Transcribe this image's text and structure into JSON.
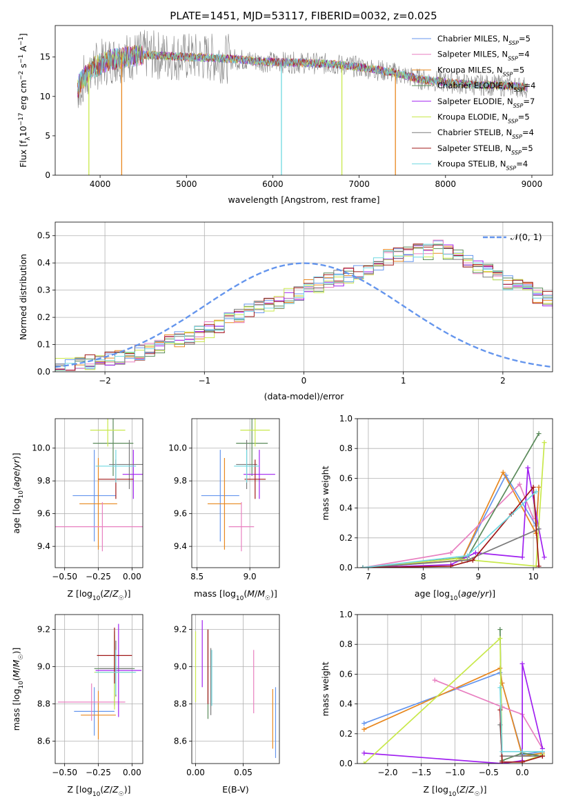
{
  "figure": {
    "title": "PLATE=1451, MJD=53117, FIBERID=0032, z=0.025",
    "colors": [
      "#6495ED",
      "#E8871E",
      "#E87FC0",
      "#5A8A5A",
      "#A020F0",
      "#C8E84A",
      "#7A7A7A",
      "#A01818",
      "#6FD8E0"
    ]
  },
  "chart_data": [
    {
      "id": "spectrum",
      "type": "line",
      "title": "PLATE=1451, MJD=53117, FIBERID=0032, z=0.025",
      "xlabel": "wavelength [Angstrom, rest frame]",
      "ylabel": "Flux [f_λ10^-17 erg cm^-2 s^-1 A^-1]",
      "xlim": [
        3480,
        9240
      ],
      "ylim": [
        0,
        19
      ],
      "xticks": [
        4000,
        5000,
        6000,
        7000,
        8000,
        9000
      ],
      "yticks": [
        0,
        5,
        10,
        15
      ],
      "legend_position": "top-right",
      "series": [
        {
          "name": "Chabrier MILES, N_SSP=5",
          "legend_main": "Chabrier MILES, N",
          "legend_sub": "SSP",
          "legend_tail": "=5",
          "color": "#6495ED"
        },
        {
          "name": "Salpeter MILES, N_SSP=4",
          "legend_main": "Salpeter MILES, N",
          "legend_sub": "SSP",
          "legend_tail": "=4",
          "color": "#E87FC0"
        },
        {
          "name": "Kroupa MILES, N_SSP=5",
          "legend_main": "Kroupa MILES, N",
          "legend_sub": "SSP",
          "legend_tail": "=5",
          "color": "#E8871E"
        },
        {
          "name": "Chabrier ELODIE, N_SSP=4",
          "legend_main": "Chabrier ELODIE, N",
          "legend_sub": "SSP",
          "legend_tail": "=4",
          "color": "#5A8A5A"
        },
        {
          "name": "Salpeter ELODIE, N_SSP=7",
          "legend_main": "Salpeter ELODIE, N",
          "legend_sub": "SSP",
          "legend_tail": "=7",
          "color": "#A020F0"
        },
        {
          "name": "Kroupa ELODIE, N_SSP=5",
          "legend_main": "Kroupa ELODIE, N",
          "legend_sub": "SSP",
          "legend_tail": "=5",
          "color": "#C8E84A"
        },
        {
          "name": "Chabrier STELIB, N_SSP=4",
          "legend_main": "Chabrier STELIB, N",
          "legend_sub": "SSP",
          "legend_tail": "=4",
          "color": "#7A7A7A"
        },
        {
          "name": "Salpeter STELIB, N_SSP=5",
          "legend_main": "Salpeter STELIB, N",
          "legend_sub": "SSP",
          "legend_tail": "=5",
          "color": "#A01818"
        },
        {
          "name": "Kroupa STELIB, N_SSP=4",
          "legend_main": "Kroupa STELIB, N",
          "legend_sub": "SSP",
          "legend_tail": "=4",
          "color": "#6FD8E0"
        }
      ],
      "continuum": {
        "wavelength": [
          3750,
          3900,
          4100,
          4300,
          4500,
          4700,
          5000,
          5300,
          5600,
          5900,
          6200,
          6500,
          6800,
          7100,
          7400,
          7700,
          8000,
          8300,
          8600,
          8900,
          9200
        ],
        "flux": [
          11.5,
          13.5,
          14.6,
          15.0,
          15.3,
          15.2,
          15.0,
          14.9,
          14.7,
          14.4,
          14.3,
          14.2,
          14.0,
          13.6,
          13.0,
          12.2,
          11.8,
          11.5,
          11.4,
          11.2,
          11.0
        ]
      },
      "dips": [
        {
          "wavelength": 3870,
          "flux": 0.0,
          "color": "#C8E84A"
        },
        {
          "wavelength": 4250,
          "flux": 0.0,
          "color": "#E8871E"
        },
        {
          "wavelength": 6100,
          "flux": 0.0,
          "color": "#6FD8E0"
        },
        {
          "wavelength": 6800,
          "flux": 0.0,
          "color": "#C8E84A"
        },
        {
          "wavelength": 7420,
          "flux": 0.0,
          "color": "#E8871E"
        }
      ]
    },
    {
      "id": "residuals",
      "type": "area",
      "xlabel": "(data-model)/error",
      "ylabel": "Normed distribution",
      "xlim": [
        -2.5,
        2.5
      ],
      "ylim": [
        0,
        0.55
      ],
      "xticks": [
        -2,
        -1,
        0,
        1,
        2
      ],
      "xtick_labels": [
        "−2",
        "−1",
        "0",
        "1",
        "2"
      ],
      "yticks": [
        0.0,
        0.1,
        0.2,
        0.3,
        0.4,
        0.5
      ],
      "grid": true,
      "legend_position": "top-right",
      "legend_label": "𝒩(0, 1)",
      "bin_width": 0.1,
      "bin_start": -2.5,
      "base_hist": [
        0.02,
        0.02,
        0.025,
        0.035,
        0.045,
        0.05,
        0.055,
        0.06,
        0.07,
        0.08,
        0.095,
        0.11,
        0.12,
        0.13,
        0.14,
        0.155,
        0.17,
        0.19,
        0.21,
        0.23,
        0.24,
        0.245,
        0.26,
        0.28,
        0.29,
        0.31,
        0.32,
        0.335,
        0.345,
        0.355,
        0.37,
        0.385,
        0.4,
        0.42,
        0.43,
        0.43,
        0.44,
        0.44,
        0.46,
        0.44,
        0.42,
        0.41,
        0.38,
        0.37,
        0.35,
        0.33,
        0.32,
        0.3,
        0.28,
        0.27,
        0.25,
        0.235,
        0.22,
        0.2,
        0.18,
        0.17,
        0.16,
        0.15,
        0.14,
        0.13,
        0.12,
        0.105,
        0.09,
        0.08,
        0.07,
        0.065,
        0.06,
        0.055,
        0.05,
        0.045,
        0.04,
        0.035,
        0.03,
        0.03,
        0.03,
        0.025,
        0.025,
        0.03,
        0.025,
        0.025,
        0.02,
        0.02,
        0.025,
        0.025,
        0.03,
        0.02,
        0.02,
        0.02,
        0.02,
        0.02,
        0.02,
        0.02,
        0.02,
        0.02,
        0.02,
        0.02,
        0.02,
        0.02,
        0.02,
        0.02
      ]
    },
    {
      "id": "age_vs_Z",
      "type": "scatter",
      "xlabel": "Z [log10(Z/Z☉)]",
      "ylabel": "age [log10(age/yr)]",
      "xlim": [
        -0.57,
        0.08
      ],
      "ylim": [
        9.27,
        10.18
      ],
      "xticks": [
        -0.5,
        -0.25,
        0.0
      ],
      "xtick_labels": [
        "−0.50",
        "−0.25",
        "0.00"
      ],
      "yticks": [
        9.4,
        9.6,
        9.8,
        10.0
      ],
      "yticks_labels": [
        "9.4",
        "9.6",
        "9.8",
        "10.0"
      ],
      "grid": true,
      "points": [
        {
          "color": "#6495ED",
          "x": -0.28,
          "xerr": 0.16,
          "y": 9.71,
          "yerr": 0.28
        },
        {
          "color": "#E8871E",
          "x": -0.25,
          "xerr": 0.14,
          "y": 9.66,
          "yerr": 0.28
        },
        {
          "color": "#E87FC0",
          "x": -0.22,
          "xerr": 0.35,
          "y": 9.52,
          "yerr": 0.15
        },
        {
          "color": "#5A8A5A",
          "x": -0.14,
          "xerr": 0.15,
          "y": 10.03,
          "yerr": 0.2
        },
        {
          "color": "#A020F0",
          "x": 0.01,
          "xerr": 0.08,
          "y": 9.84,
          "yerr": 0.15
        },
        {
          "color": "#C8E84A",
          "x": -0.18,
          "xerr": 0.13,
          "y": 10.11,
          "yerr": 0.1
        },
        {
          "color": "#7A7A7A",
          "x": -0.02,
          "xerr": 0.15,
          "y": 9.9,
          "yerr": 0.15
        },
        {
          "color": "#A01818",
          "x": -0.12,
          "xerr": 0.13,
          "y": 9.81,
          "yerr": 0.12
        },
        {
          "color": "#6FD8E0",
          "x": -0.12,
          "xerr": 0.15,
          "y": 9.89,
          "yerr": 0.1
        }
      ]
    },
    {
      "id": "age_vs_mass",
      "type": "scatter",
      "xlabel": "mass [log10(M/M☉)]",
      "ylabel": "",
      "xlim": [
        8.45,
        9.28
      ],
      "ylim": [
        9.27,
        10.18
      ],
      "xticks": [
        8.5,
        9.0
      ],
      "xtick_labels": [
        "8.5",
        "9.0"
      ],
      "yticks": [
        9.4,
        9.6,
        9.8,
        10.0
      ],
      "yticks_labels": [
        "9.4",
        "9.6",
        "9.8",
        "10.0"
      ],
      "grid": true,
      "points": [
        {
          "color": "#6495ED",
          "x": 8.72,
          "xerr": 0.18,
          "y": 9.71,
          "yerr": 0.28
        },
        {
          "color": "#E8871E",
          "x": 8.76,
          "xerr": 0.16,
          "y": 9.66,
          "yerr": 0.28
        },
        {
          "color": "#E87FC0",
          "x": 8.92,
          "xerr": 0.12,
          "y": 9.52,
          "yerr": 0.15
        },
        {
          "color": "#5A8A5A",
          "x": 9.02,
          "xerr": 0.15,
          "y": 10.03,
          "yerr": 0.2
        },
        {
          "color": "#A020F0",
          "x": 9.09,
          "xerr": 0.15,
          "y": 9.84,
          "yerr": 0.15
        },
        {
          "color": "#C8E84A",
          "x": 9.05,
          "xerr": 0.14,
          "y": 10.11,
          "yerr": 0.1
        },
        {
          "color": "#7A7A7A",
          "x": 8.97,
          "xerr": 0.1,
          "y": 9.9,
          "yerr": 0.15
        },
        {
          "color": "#A01818",
          "x": 9.05,
          "xerr": 0.1,
          "y": 9.81,
          "yerr": 0.12
        },
        {
          "color": "#6FD8E0",
          "x": 8.97,
          "xerr": 0.12,
          "y": 9.89,
          "yerr": 0.1
        }
      ]
    },
    {
      "id": "weight_vs_age",
      "type": "line",
      "xlabel": "age [log10(age/yr)]",
      "ylabel": "mass weight",
      "xlim": [
        6.8,
        10.35
      ],
      "ylim": [
        0.0,
        1.0
      ],
      "xticks": [
        7,
        8,
        9,
        10
      ],
      "yticks": [
        0.0,
        0.2,
        0.4,
        0.6,
        0.8,
        1.0
      ],
      "grid": true,
      "series": [
        {
          "color": "#6495ED",
          "x": [
            6.9,
            8.7,
            9.5,
            10.05,
            10.1
          ],
          "y": [
            0.0,
            0.05,
            0.62,
            0.28,
            0.54
          ]
        },
        {
          "color": "#E8871E",
          "x": [
            6.9,
            8.7,
            9.45,
            10.05,
            10.1
          ],
          "y": [
            0.0,
            0.05,
            0.64,
            0.23,
            0.54
          ]
        },
        {
          "color": "#E87FC0",
          "x": [
            6.9,
            8.5,
            9.75,
            10.0
          ],
          "y": [
            0.0,
            0.1,
            0.56,
            0.33
          ]
        },
        {
          "color": "#5A8A5A",
          "x": [
            6.9,
            8.8,
            10.1
          ],
          "y": [
            0.0,
            0.07,
            0.9
          ]
        },
        {
          "color": "#A020F0",
          "x": [
            6.9,
            8.5,
            8.95,
            9.8,
            9.9,
            10.1,
            10.2
          ],
          "y": [
            0.0,
            0.02,
            0.1,
            0.07,
            0.67,
            0.26,
            0.07
          ]
        },
        {
          "color": "#C8E84A",
          "x": [
            6.9,
            8.6,
            10.05,
            10.2
          ],
          "y": [
            0.0,
            0.06,
            0.01,
            0.84
          ]
        },
        {
          "color": "#7A7A7A",
          "x": [
            6.9,
            8.8,
            10.1
          ],
          "y": [
            0.0,
            0.05,
            0.26
          ]
        },
        {
          "color": "#A01818",
          "x": [
            6.9,
            8.5,
            8.9,
            9.6,
            10.0,
            10.1
          ],
          "y": [
            0.0,
            0.01,
            0.05,
            0.36,
            0.54,
            0.01
          ]
        },
        {
          "color": "#6FD8E0",
          "x": [
            6.9,
            8.8,
            10.05
          ],
          "y": [
            0.0,
            0.08,
            0.51
          ]
        }
      ]
    },
    {
      "id": "mass_vs_Z",
      "type": "scatter",
      "xlabel": "Z [log10(Z/Z☉)]",
      "ylabel": "mass [log10(M/M☉)]",
      "xlim": [
        -0.57,
        0.08
      ],
      "ylim": [
        8.48,
        9.28
      ],
      "xticks": [
        -0.5,
        -0.25,
        0.0
      ],
      "xtick_labels": [
        "−0.50",
        "−0.25",
        "0.00"
      ],
      "yticks": [
        8.6,
        8.8,
        9.0,
        9.2
      ],
      "yticks_labels": [
        "8.6",
        "8.8",
        "9.0",
        "9.2"
      ],
      "grid": true,
      "points": [
        {
          "color": "#6495ED",
          "x": -0.28,
          "xerr": 0.15,
          "y": 8.76,
          "yerr": 0.13
        },
        {
          "color": "#E8871E",
          "x": -0.25,
          "xerr": 0.13,
          "y": 8.74,
          "yerr": 0.13
        },
        {
          "color": "#E87FC0",
          "x": -0.3,
          "xerr": 0.25,
          "y": 8.81,
          "yerr": 0.1
        },
        {
          "color": "#5A8A5A",
          "x": -0.13,
          "xerr": 0.15,
          "y": 8.99,
          "yerr": 0.2
        },
        {
          "color": "#A020F0",
          "x": -0.1,
          "xerr": 0.17,
          "y": 8.98,
          "yerr": 0.25
        },
        {
          "color": "#C8E84A",
          "x": -0.13,
          "xerr": 0.15,
          "y": 8.97,
          "yerr": 0.2
        },
        {
          "color": "#7A7A7A",
          "x": -0.12,
          "xerr": 0.12,
          "y": 8.99,
          "yerr": 0.15
        },
        {
          "color": "#A01818",
          "x": -0.13,
          "xerr": 0.13,
          "y": 9.06,
          "yerr": 0.15
        },
        {
          "color": "#6FD8E0",
          "x": -0.12,
          "xerr": 0.15,
          "y": 8.97,
          "yerr": 0.12
        }
      ]
    },
    {
      "id": "mass_vs_ebv",
      "type": "scatter",
      "xlabel": "E(B-V)",
      "ylabel": "",
      "xlim": [
        -0.004,
        0.088
      ],
      "ylim": [
        8.48,
        9.28
      ],
      "xticks": [
        0.0,
        0.05
      ],
      "xtick_labels": [
        "0.00",
        "0.05"
      ],
      "yticks": [
        8.6,
        8.8,
        9.0,
        9.2
      ],
      "yticks_labels": [
        "8.6",
        "8.8",
        "9.0",
        "9.2"
      ],
      "grid": true,
      "points": [
        {
          "color": "#6495ED",
          "x": 0.084,
          "xerr": 0.0,
          "y": 8.7,
          "yerr": 0.19
        },
        {
          "color": "#E8871E",
          "x": 0.081,
          "xerr": 0.0,
          "y": 8.72,
          "yerr": 0.16
        },
        {
          "color": "#E87FC0",
          "x": 0.061,
          "xerr": 0.0,
          "y": 8.92,
          "yerr": 0.17
        },
        {
          "color": "#5A8A5A",
          "x": 0.013,
          "xerr": 0.0,
          "y": 8.96,
          "yerr": 0.24
        },
        {
          "color": "#A020F0",
          "x": 0.007,
          "xerr": 0.0,
          "y": 9.07,
          "yerr": 0.18
        },
        {
          "color": "#C8E84A",
          "x": 0.0,
          "xerr": 0.0,
          "y": 9.0,
          "yerr": 0.19
        },
        {
          "color": "#7A7A7A",
          "x": 0.016,
          "xerr": 0.0,
          "y": 8.92,
          "yerr": 0.18
        },
        {
          "color": "#A01818",
          "x": 0.013,
          "xerr": 0.0,
          "y": 9.0,
          "yerr": 0.2
        },
        {
          "color": "#6FD8E0",
          "x": 0.017,
          "xerr": 0.0,
          "y": 8.94,
          "yerr": 0.15
        }
      ]
    },
    {
      "id": "weight_vs_Z",
      "type": "line",
      "xlabel": "Z [log10(Z/Z☉)]",
      "ylabel": "mass weight",
      "xlim": [
        -2.45,
        0.45
      ],
      "ylim": [
        0.0,
        1.0
      ],
      "xticks": [
        -2.0,
        -1.5,
        -1.0,
        -0.5,
        0.0
      ],
      "xtick_labels": [
        "−2.0",
        "−1.5",
        "−1.0",
        "−0.5",
        "0.0"
      ],
      "yticks": [
        0.0,
        0.2,
        0.4,
        0.6,
        0.8,
        1.0
      ],
      "grid": true,
      "series": [
        {
          "color": "#6495ED",
          "x": [
            -2.35,
            -0.33,
            -0.3,
            0.0,
            0.3
          ],
          "y": [
            0.27,
            0.61,
            0.54,
            0.06,
            0.08
          ]
        },
        {
          "color": "#E8871E",
          "x": [
            -2.35,
            -0.33,
            -0.3,
            0.0,
            0.3
          ],
          "y": [
            0.23,
            0.64,
            0.54,
            0.05,
            0.07
          ]
        },
        {
          "color": "#E87FC0",
          "x": [
            -1.3,
            -0.3,
            0.0,
            0.3
          ],
          "y": [
            0.56,
            0.38,
            0.33,
            0.1
          ]
        },
        {
          "color": "#5A8A5A",
          "x": [
            -0.33,
            -0.3,
            0.0,
            0.3
          ],
          "y": [
            0.9,
            0.02,
            0.07,
            0.05
          ]
        },
        {
          "color": "#A020F0",
          "x": [
            -2.35,
            -0.3,
            0.0,
            0.0,
            0.3
          ],
          "y": [
            0.07,
            0.0,
            0.02,
            0.67,
            0.1
          ]
        },
        {
          "color": "#C8E84A",
          "x": [
            -2.35,
            -0.33,
            -0.3,
            0.0,
            0.3
          ],
          "y": [
            0.0,
            0.84,
            0.01,
            0.01,
            0.06
          ]
        },
        {
          "color": "#7A7A7A",
          "x": [
            -0.33,
            -0.3,
            0.0,
            0.3
          ],
          "y": [
            0.26,
            0.05,
            0.05,
            0.05
          ]
        },
        {
          "color": "#A01818",
          "x": [
            -0.33,
            -0.3,
            -0.3,
            0.0,
            0.3
          ],
          "y": [
            0.36,
            0.01,
            0.01,
            0.01,
            0.05
          ]
        },
        {
          "color": "#6FD8E0",
          "x": [
            -0.33,
            -0.3,
            0.0,
            0.3
          ],
          "y": [
            0.51,
            0.08,
            0.08,
            0.08
          ]
        }
      ]
    }
  ]
}
